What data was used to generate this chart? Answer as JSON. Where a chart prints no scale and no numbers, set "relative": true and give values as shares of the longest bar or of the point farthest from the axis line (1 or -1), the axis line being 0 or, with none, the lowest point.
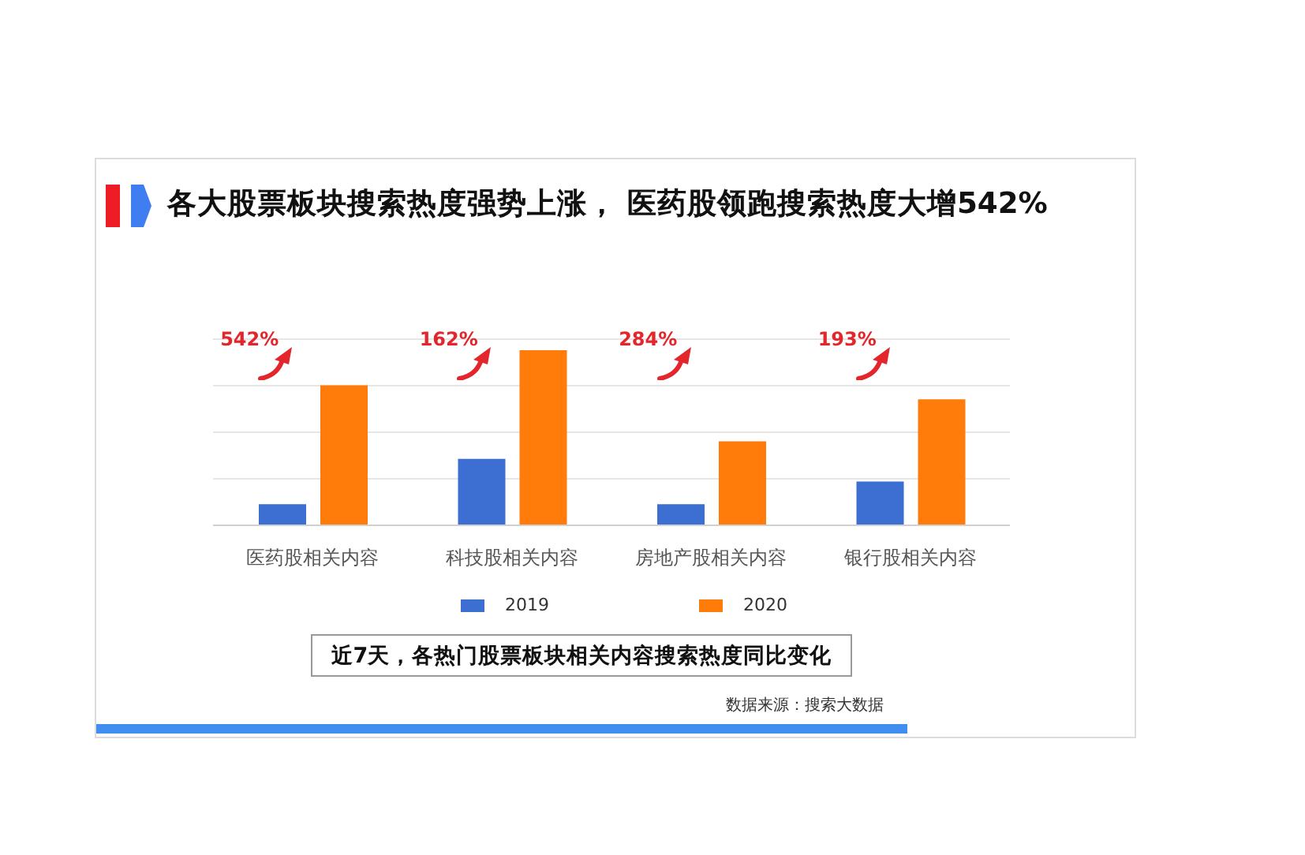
{
  "chart_data": {
    "type": "bar",
    "title": "各大股票板块搜索热度强势上涨， 医药股领跑搜索热度大增542%",
    "categories": [
      "医药股相关内容",
      "科技股相关内容",
      "房地产股相关内容",
      "银行股相关内容"
    ],
    "series": [
      {
        "name": "2019",
        "color": "#3c6fd1",
        "values": [
          0.12,
          0.38,
          0.12,
          0.25
        ]
      },
      {
        "name": "2020",
        "color": "#ff7b0a",
        "values": [
          0.8,
          1,
          0.48,
          0.72
        ]
      }
    ],
    "relative": true,
    "grid": "y",
    "legend": "bottom",
    "annotations": [
      "542%",
      "162%",
      "284%",
      "193%",
      "近7天，各热门股票板块相关内容搜索热度同比变化",
      "数据来源：搜索大数据"
    ]
  }
}
